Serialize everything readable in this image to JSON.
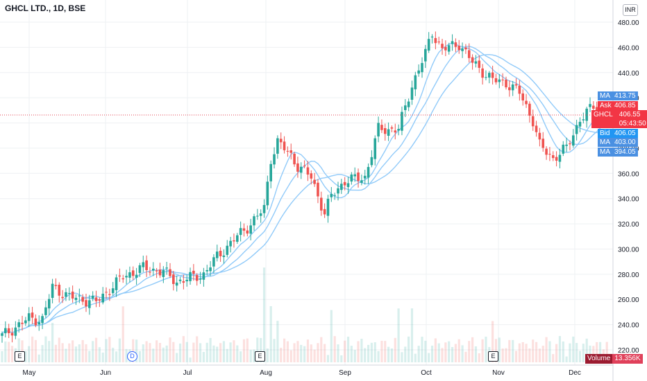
{
  "header": {
    "title": "GHCL LTD., 1D, BSE",
    "currency": "INR"
  },
  "y_axis": {
    "ticks": [
      "480.00",
      "460.00",
      "440.00",
      "420.00",
      "400.00",
      "380.00",
      "360.00",
      "340.00",
      "320.00",
      "300.00",
      "280.00",
      "260.00",
      "240.00",
      "220.00"
    ]
  },
  "x_axis": {
    "months": [
      "May",
      "Jun",
      "Jul",
      "Aug",
      "Sep",
      "Oct",
      "Nov",
      "Dec"
    ]
  },
  "price_tags": {
    "ma1": {
      "label": "MA",
      "value": "413.75",
      "color": "#4a90e2"
    },
    "ask": {
      "label": "Ask",
      "value": "406.85",
      "color": "#f23645"
    },
    "last": {
      "label": "GHCL",
      "value": "406.55",
      "time": "05:43:50",
      "color": "#f23645"
    },
    "bid": {
      "label": "Bid",
      "value": "406.05",
      "color": "#2196f3"
    },
    "ma2": {
      "label": "MA",
      "value": "403.00",
      "color": "#4a90e2"
    },
    "ma3": {
      "label": "MA",
      "value": "394.05",
      "color": "#4a90e2"
    }
  },
  "volume": {
    "label": "Volume",
    "value": "13.356K",
    "color": "#9b1b30"
  },
  "events": [
    {
      "label": "E",
      "type": "earnings"
    },
    {
      "label": "D",
      "type": "dividend"
    },
    {
      "label": "E",
      "type": "earnings"
    },
    {
      "label": "E",
      "type": "earnings"
    }
  ],
  "colors": {
    "up": "#26a69a",
    "down": "#ef5350",
    "ma": "#90caf9",
    "grid": "#eef0f3"
  },
  "chart_data": {
    "type": "candlestick",
    "symbol": "GHCL LTD.",
    "interval": "1D",
    "exchange": "BSE",
    "ylim": [
      220,
      480
    ],
    "x_months": [
      "May",
      "Jun",
      "Jul",
      "Aug",
      "Sep",
      "Oct",
      "Nov",
      "Dec"
    ],
    "anchors": [
      [
        0,
        231
      ],
      [
        8,
        245
      ],
      [
        12,
        244
      ],
      [
        15,
        270
      ],
      [
        20,
        262
      ],
      [
        28,
        258
      ],
      [
        36,
        278
      ],
      [
        42,
        285
      ],
      [
        48,
        282
      ],
      [
        52,
        274
      ],
      [
        60,
        280
      ],
      [
        64,
        294
      ],
      [
        70,
        310
      ],
      [
        74,
        320
      ],
      [
        78,
        332
      ],
      [
        80,
        372
      ],
      [
        82,
        385
      ],
      [
        86,
        374
      ],
      [
        88,
        366
      ],
      [
        92,
        357
      ],
      [
        96,
        328
      ],
      [
        98,
        342
      ],
      [
        102,
        354
      ],
      [
        108,
        357
      ],
      [
        112,
        395
      ],
      [
        118,
        395
      ],
      [
        122,
        430
      ],
      [
        126,
        455
      ],
      [
        128,
        472
      ],
      [
        131,
        458
      ],
      [
        136,
        463
      ],
      [
        140,
        448
      ],
      [
        146,
        434
      ],
      [
        150,
        432
      ],
      [
        154,
        424
      ],
      [
        158,
        402
      ],
      [
        160,
        382
      ],
      [
        164,
        372
      ],
      [
        168,
        380
      ],
      [
        172,
        403
      ],
      [
        176,
        413
      ],
      [
        180,
        407
      ]
    ],
    "last_price": 406.55,
    "moving_averages": [
      413.75,
      403.0,
      394.05
    ],
    "bid": 406.05,
    "ask": 406.85,
    "last_volume": "13.356K"
  }
}
